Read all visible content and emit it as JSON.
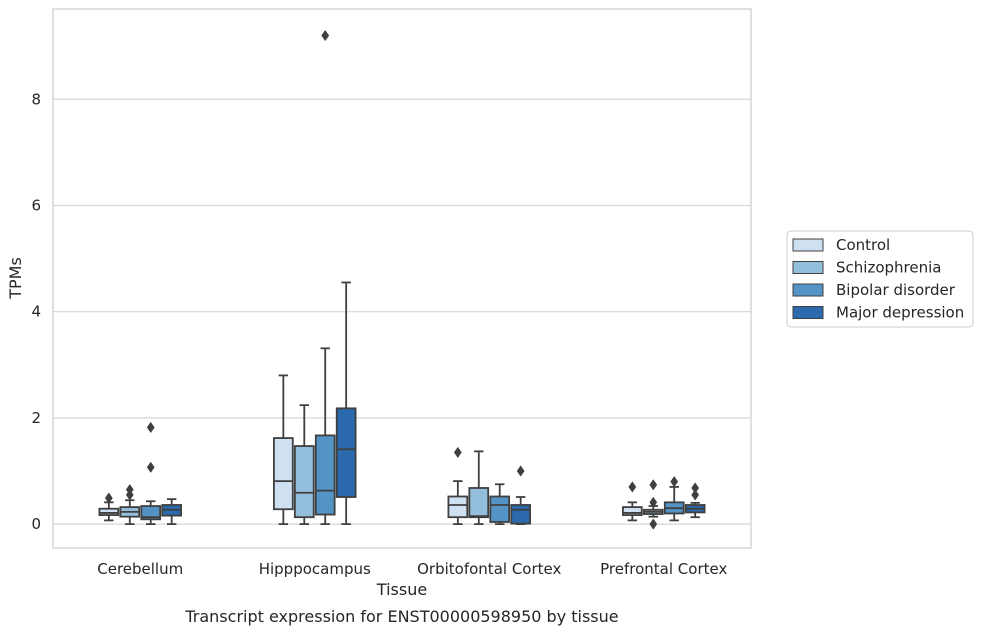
{
  "chart_data": {
    "type": "box",
    "caption": "Transcript expression for ENST00000598950 by tissue",
    "xlabel": "Tissue",
    "ylabel": "TPMs",
    "ylim": [
      -0.45,
      9.7
    ],
    "yticks": [
      0,
      2,
      4,
      6,
      8
    ],
    "grid": "horizontal",
    "legend_position": "right",
    "categories": [
      "Cerebellum",
      "Hipppocampus",
      "Orbitofontal Cortex",
      "Prefrontal Cortex"
    ],
    "series": [
      {
        "name": "Control",
        "color": "#cfe0f2",
        "boxes": [
          {
            "whislo": 0.07,
            "q1": 0.17,
            "med": 0.21,
            "q3": 0.29,
            "whishi": 0.41,
            "fliers": [
              0.49
            ]
          },
          {
            "whislo": 0.0,
            "q1": 0.28,
            "med": 0.81,
            "q3": 1.62,
            "whishi": 2.8,
            "fliers": []
          },
          {
            "whislo": 0.0,
            "q1": 0.13,
            "med": 0.36,
            "q3": 0.52,
            "whishi": 0.81,
            "fliers": [
              1.35
            ]
          },
          {
            "whislo": 0.07,
            "q1": 0.17,
            "med": 0.21,
            "q3": 0.32,
            "whishi": 0.41,
            "fliers": [
              0.7
            ]
          }
        ]
      },
      {
        "name": "Schizophrenia",
        "color": "#94bfdc",
        "boxes": [
          {
            "whislo": 0.0,
            "q1": 0.14,
            "med": 0.23,
            "q3": 0.32,
            "whishi": 0.45,
            "fliers": [
              0.55,
              0.65
            ]
          },
          {
            "whislo": 0.0,
            "q1": 0.13,
            "med": 0.59,
            "q3": 1.47,
            "whishi": 2.24,
            "fliers": []
          },
          {
            "whislo": 0.0,
            "q1": 0.13,
            "med": 0.15,
            "q3": 0.68,
            "whishi": 1.37,
            "fliers": []
          },
          {
            "whislo": 0.14,
            "q1": 0.19,
            "med": 0.23,
            "q3": 0.27,
            "whishi": 0.34,
            "fliers": [
              0.41,
              0.74,
              0.0
            ]
          }
        ]
      },
      {
        "name": "Bipolar disorder",
        "color": "#5493c5",
        "boxes": [
          {
            "whislo": 0.0,
            "q1": 0.09,
            "med": 0.13,
            "q3": 0.34,
            "whishi": 0.43,
            "fliers": [
              1.07,
              1.82
            ]
          },
          {
            "whislo": 0.0,
            "q1": 0.18,
            "med": 0.63,
            "q3": 1.67,
            "whishi": 3.31,
            "fliers": [
              9.2
            ]
          },
          {
            "whislo": 0.0,
            "q1": 0.04,
            "med": 0.36,
            "q3": 0.52,
            "whishi": 0.75,
            "fliers": []
          },
          {
            "whislo": 0.07,
            "q1": 0.2,
            "med": 0.3,
            "q3": 0.41,
            "whishi": 0.7,
            "fliers": [
              0.8
            ]
          }
        ]
      },
      {
        "name": "Major depression",
        "color": "#2a6aad",
        "boxes": [
          {
            "whislo": 0.0,
            "q1": 0.16,
            "med": 0.27,
            "q3": 0.36,
            "whishi": 0.47,
            "fliers": []
          },
          {
            "whislo": 0.0,
            "q1": 0.51,
            "med": 1.41,
            "q3": 2.18,
            "whishi": 4.55,
            "fliers": []
          },
          {
            "whislo": 0.0,
            "q1": 0.01,
            "med": 0.27,
            "q3": 0.36,
            "whishi": 0.51,
            "fliers": [
              1.0
            ]
          },
          {
            "whislo": 0.13,
            "q1": 0.22,
            "med": 0.29,
            "q3": 0.36,
            "whishi": 0.4,
            "fliers": [
              0.55,
              0.68
            ]
          }
        ]
      }
    ]
  }
}
